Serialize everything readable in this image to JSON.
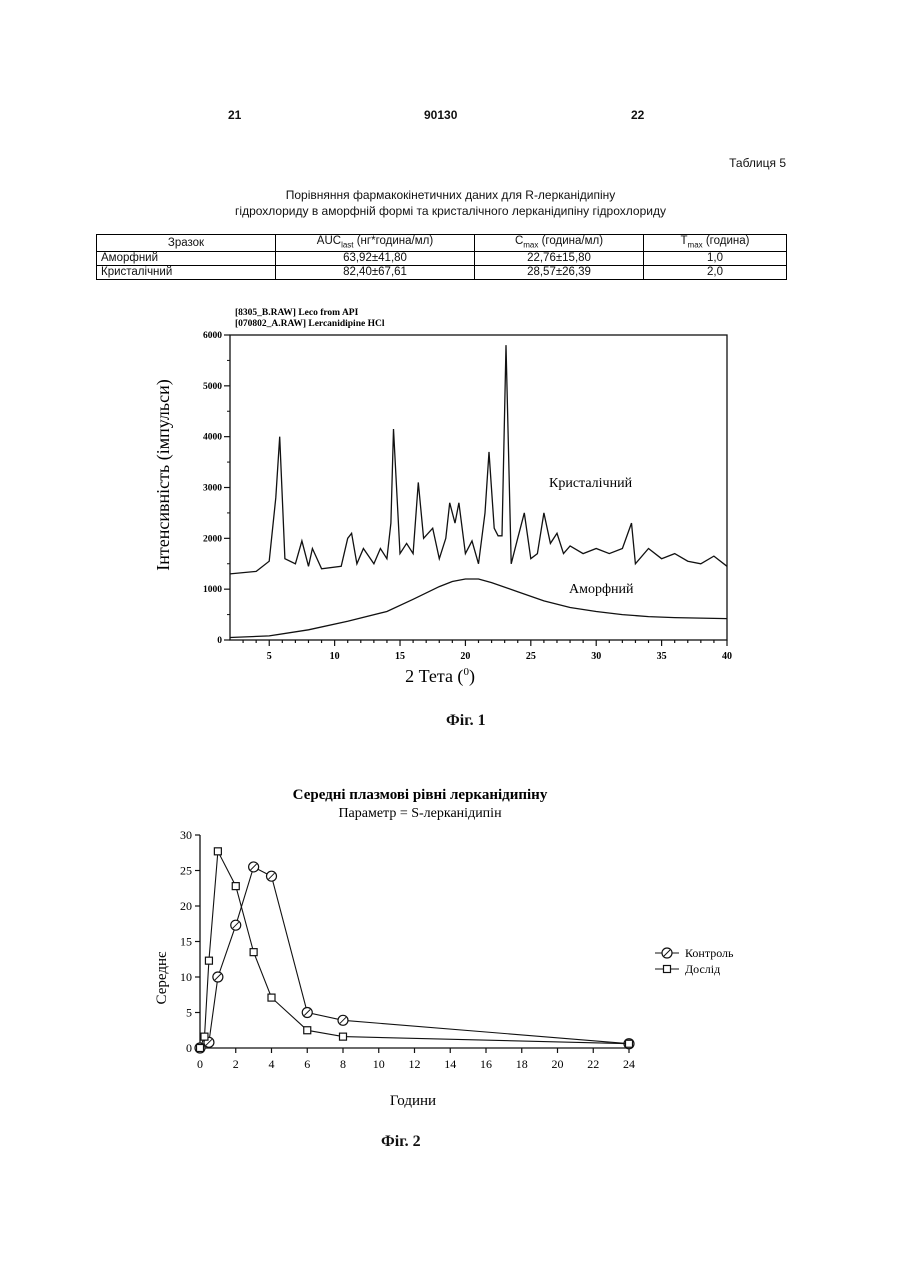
{
  "header": {
    "left_page": "21",
    "doc_number": "90130",
    "right_page": "22"
  },
  "table": {
    "label": "Таблиця 5",
    "caption_line1": "Порівняння фармакокінетичних даних для R-лерканідипіну",
    "caption_line2": "гідрохлориду в аморфній формі та кристалічного лерканідипіну гідрохлориду",
    "headers": [
      {
        "main": "Зразок",
        "sub": "",
        "rest": ""
      },
      {
        "main": "AUC",
        "sub": "last",
        "rest": " (нг*година/мл)"
      },
      {
        "main": "C",
        "sub": "max",
        "rest": " (година/мл)"
      },
      {
        "main": "T",
        "sub": "max",
        "rest": " (година)"
      }
    ],
    "rows": [
      [
        "Аморфний",
        "63,92±41,80",
        "22,76±15,80",
        "1,0"
      ],
      [
        "Кристалічний",
        "82,40±67,61",
        "28,57±26,39",
        "2,0"
      ]
    ]
  },
  "chart_data": [
    {
      "type": "line",
      "legend_lines": [
        "[8305_B.RAW] Leco from API",
        "[070802_A.RAW] Lercanidipine HCl"
      ],
      "xlabel": "2 Тета (0)",
      "ylabel": "Інтенсивність (імпульси)",
      "xlim": [
        2,
        40
      ],
      "ylim": [
        0,
        6000
      ],
      "x_ticks": [
        5,
        10,
        15,
        20,
        25,
        30,
        35,
        40
      ],
      "y_ticks": [
        0,
        1000,
        2000,
        3000,
        4000,
        5000,
        6000
      ],
      "series": [
        {
          "name": "Кристалічний",
          "x": [
            2,
            4,
            5,
            5.5,
            5.8,
            6.2,
            7,
            7.5,
            8,
            8.3,
            9,
            10.5,
            11,
            11.3,
            11.7,
            12.2,
            13,
            13.5,
            14,
            14.3,
            14.5,
            15,
            15.5,
            16,
            16.4,
            16.8,
            17.5,
            18,
            18.5,
            18.8,
            19.2,
            19.5,
            20,
            20.5,
            21,
            21.5,
            21.8,
            22.2,
            22.5,
            22.8,
            23.1,
            23.5,
            24,
            24.5,
            25,
            25.5,
            26,
            26.5,
            27,
            27.5,
            28,
            29,
            30,
            31,
            32,
            32.7,
            33,
            34,
            35,
            36,
            37,
            38,
            39,
            40
          ],
          "values": [
            1300,
            1350,
            1550,
            2800,
            4000,
            1600,
            1500,
            1950,
            1450,
            1800,
            1400,
            1450,
            2000,
            2100,
            1500,
            1800,
            1500,
            1800,
            1600,
            2300,
            4150,
            1700,
            1900,
            1700,
            3100,
            2000,
            2200,
            1600,
            2000,
            2700,
            2300,
            2700,
            1700,
            1950,
            1500,
            2500,
            3700,
            2200,
            2050,
            2050,
            5800,
            1500,
            2000,
            2500,
            1600,
            1700,
            2500,
            1900,
            2100,
            1700,
            1850,
            1700,
            1800,
            1700,
            1800,
            2300,
            1500,
            1800,
            1600,
            1700,
            1550,
            1500,
            1650,
            1450
          ]
        },
        {
          "name": "Аморфний",
          "x": [
            2,
            5,
            8,
            11,
            14,
            16,
            18,
            19,
            20,
            21,
            22,
            24,
            26,
            28,
            30,
            32,
            34,
            36,
            38,
            40
          ],
          "values": [
            50,
            80,
            200,
            370,
            560,
            800,
            1050,
            1150,
            1200,
            1200,
            1130,
            950,
            770,
            640,
            560,
            500,
            460,
            440,
            430,
            420
          ]
        }
      ]
    },
    {
      "type": "line",
      "title": "Середні плазмові рівні лерканідипіну",
      "subtitle": "Параметр = S-лерканідипін",
      "xlabel": "Години",
      "ylabel": "Середнє",
      "xlim": [
        0,
        24
      ],
      "ylim": [
        0,
        30
      ],
      "x_ticks": [
        0,
        2,
        4,
        6,
        8,
        10,
        12,
        14,
        16,
        18,
        20,
        22,
        24
      ],
      "y_ticks": [
        0,
        5,
        10,
        15,
        20,
        25,
        30
      ],
      "legend_position": "right",
      "series": [
        {
          "name": "Контроль",
          "marker": "circle",
          "x": [
            0,
            0.5,
            1,
            2,
            3,
            4,
            6,
            8,
            24
          ],
          "values": [
            0,
            0.8,
            10,
            17.3,
            25.5,
            24.2,
            5,
            3.9,
            0.6
          ]
        },
        {
          "name": "Дослід",
          "marker": "square",
          "x": [
            0,
            0.25,
            0.5,
            1,
            2,
            3,
            4,
            6,
            8,
            24
          ],
          "values": [
            0,
            1.6,
            12.3,
            27.7,
            22.8,
            13.5,
            7.1,
            2.5,
            1.6,
            0.6
          ]
        }
      ]
    }
  ],
  "figures": {
    "fig1_caption": "Фіг. 1",
    "fig2_caption": "Фіг. 2"
  }
}
